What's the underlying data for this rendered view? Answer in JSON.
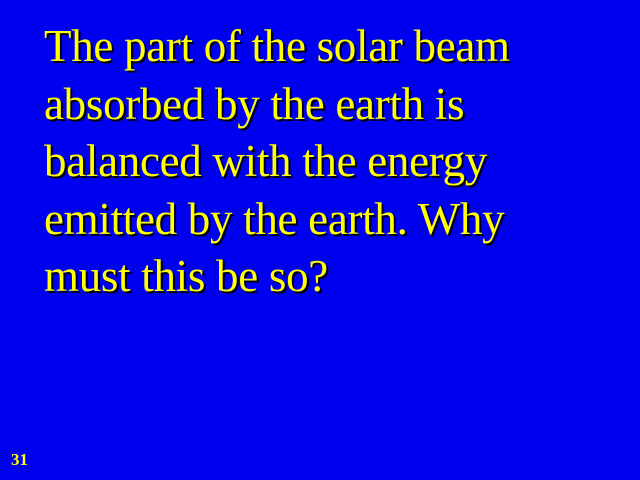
{
  "slide": {
    "background_color": "#0000f0",
    "text_color": "#ffff00",
    "body_lines": [
      "The part of the solar beam",
      "absorbed by the earth is",
      "balanced with the energy",
      "emitted by the earth. Why",
      "must this be so?"
    ],
    "slide_number": "31"
  }
}
